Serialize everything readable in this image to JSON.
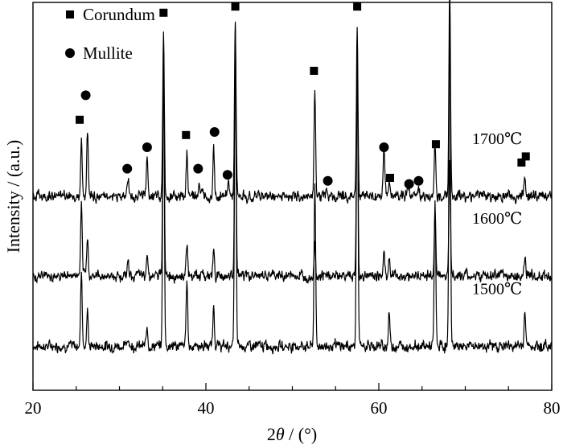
{
  "chart_data": {
    "type": "line",
    "title": "",
    "xlabel_prefix": "2",
    "xlabel_var": "θ",
    "xlabel_unit": " / (°)",
    "ylabel": "Intensity / (a.u.)",
    "xlim": [
      20,
      80
    ],
    "x_ticks": [
      "20",
      "40",
      "60",
      "80"
    ],
    "legend": [
      {
        "label": "Corundum",
        "marker": "square"
      },
      {
        "label": "Mullite",
        "marker": "circle"
      }
    ],
    "series": [
      {
        "name": "1500℃",
        "baseline": 0.0,
        "peaks": [
          [
            25.6,
            0.25
          ],
          [
            26.3,
            0.11
          ],
          [
            31.0,
            0.03
          ],
          [
            33.2,
            0.06
          ],
          [
            35.1,
            0.95
          ],
          [
            37.8,
            0.22
          ],
          [
            40.9,
            0.13
          ],
          [
            43.4,
            1.05
          ],
          [
            52.6,
            0.53
          ],
          [
            57.5,
            0.96
          ],
          [
            61.2,
            0.11
          ],
          [
            66.5,
            0.47
          ],
          [
            68.2,
            1.1
          ],
          [
            76.9,
            0.12
          ]
        ]
      },
      {
        "name": "1600℃",
        "baseline": 0.23,
        "peaks": [
          [
            25.6,
            0.22
          ],
          [
            26.3,
            0.13
          ],
          [
            31.0,
            0.05
          ],
          [
            33.2,
            0.08
          ],
          [
            35.1,
            0.73
          ],
          [
            37.8,
            0.1
          ],
          [
            40.9,
            0.08
          ],
          [
            43.4,
            0.75
          ],
          [
            52.6,
            0.1
          ],
          [
            57.5,
            0.67
          ],
          [
            60.6,
            0.08
          ],
          [
            61.2,
            0.06
          ],
          [
            66.5,
            0.22
          ],
          [
            68.2,
            0.38
          ],
          [
            76.9,
            0.06
          ]
        ]
      },
      {
        "name": "1700℃",
        "baseline": 0.49,
        "peaks": [
          [
            25.6,
            0.2
          ],
          [
            26.3,
            0.22
          ],
          [
            31.0,
            0.06
          ],
          [
            33.2,
            0.12
          ],
          [
            35.1,
            0.53
          ],
          [
            37.8,
            0.14
          ],
          [
            39.2,
            0.04
          ],
          [
            40.9,
            0.17
          ],
          [
            42.6,
            0.04
          ],
          [
            43.4,
            0.56
          ],
          [
            52.6,
            0.36
          ],
          [
            54.0,
            0.02
          ],
          [
            57.5,
            0.56
          ],
          [
            60.6,
            0.15
          ],
          [
            61.2,
            0.04
          ],
          [
            63.4,
            0.03
          ],
          [
            64.6,
            0.03
          ],
          [
            66.5,
            0.17
          ],
          [
            68.2,
            0.7
          ],
          [
            76.9,
            0.06
          ]
        ]
      }
    ],
    "markers": [
      {
        "x": 25.4,
        "y": 0.74,
        "type": "square"
      },
      {
        "x": 26.1,
        "y": 0.82,
        "type": "circle"
      },
      {
        "x": 30.9,
        "y": 0.58,
        "type": "circle"
      },
      {
        "x": 33.2,
        "y": 0.65,
        "type": "circle"
      },
      {
        "x": 35.1,
        "y": 1.09,
        "type": "square"
      },
      {
        "x": 37.7,
        "y": 0.69,
        "type": "square"
      },
      {
        "x": 39.1,
        "y": 0.58,
        "type": "circle"
      },
      {
        "x": 41.0,
        "y": 0.7,
        "type": "circle"
      },
      {
        "x": 42.5,
        "y": 0.56,
        "type": "circle"
      },
      {
        "x": 43.4,
        "y": 1.11,
        "type": "square"
      },
      {
        "x": 52.5,
        "y": 0.9,
        "type": "square"
      },
      {
        "x": 54.1,
        "y": 0.54,
        "type": "circle"
      },
      {
        "x": 57.5,
        "y": 1.11,
        "type": "square"
      },
      {
        "x": 60.6,
        "y": 0.65,
        "type": "circle"
      },
      {
        "x": 61.3,
        "y": 0.55,
        "type": "square"
      },
      {
        "x": 63.5,
        "y": 0.53,
        "type": "circle"
      },
      {
        "x": 64.6,
        "y": 0.54,
        "type": "circle"
      },
      {
        "x": 66.6,
        "y": 0.66,
        "type": "square"
      },
      {
        "x": 68.3,
        "y": 1.25,
        "type": "square"
      },
      {
        "x": 76.5,
        "y": 0.6,
        "type": "square"
      },
      {
        "x": 77.0,
        "y": 0.62,
        "type": "square"
      }
    ]
  }
}
